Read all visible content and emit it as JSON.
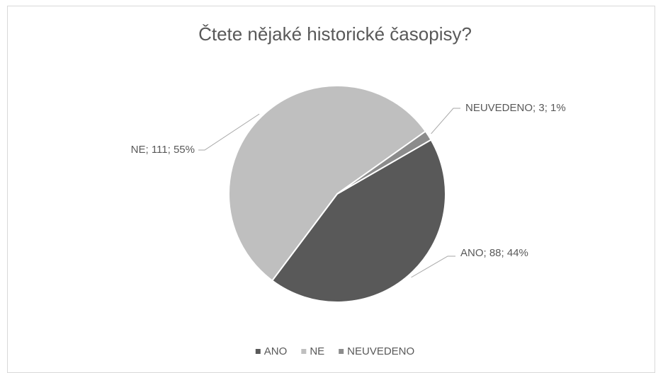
{
  "chart_data": {
    "type": "pie",
    "title": "Čtete nějaké historické časopisy?",
    "categories": [
      "ANO",
      "NE",
      "NEUVEDENO"
    ],
    "values": [
      88,
      111,
      3
    ],
    "value_labels": [
      "ANO; 88; 44%",
      "NE; 111; 55%",
      "NEUVEDENO; 3; 1%"
    ],
    "colors": [
      "#595959",
      "#bfbfbf",
      "#8c8c8c"
    ],
    "legend": "bottom"
  }
}
